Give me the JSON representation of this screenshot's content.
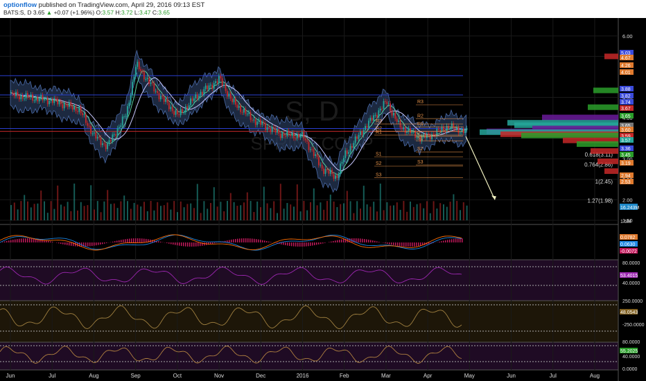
{
  "header": {
    "author": "optionflow",
    "published_text": "published on TradingView.com, April 29, 2016 09:13 EST",
    "symbol": "BATS:S, D",
    "last": "3.65",
    "change_arrow": "▲",
    "change": "+0.07 (+1.96%)",
    "open_label": "O:",
    "open": "3.57",
    "high_label": "H:",
    "high": "3.72",
    "low_label": "L:",
    "low": "3.47",
    "close_label": "C:",
    "close": "3.65"
  },
  "watermark": {
    "line1": "S, D",
    "line2": "SPRINT CORP"
  },
  "colors": {
    "bg": "#000000",
    "up": "#26a69a",
    "down": "#c62828",
    "band_fill": "#2b3f63",
    "macd_pane": "#000000",
    "rsi_pane": "#1f0b24",
    "cci_pane": "#1d1608",
    "stoch_pane": "#1f0b24",
    "arrow": "#f0f0c0",
    "pivot": "#e8944a"
  },
  "chart_data": {
    "type": "line",
    "title": "BATS:S, D",
    "x_labels": [
      "Jun",
      "Jul",
      "Aug",
      "Sep",
      "Oct",
      "Nov",
      "Dec",
      "2016",
      "Feb",
      "Mar",
      "Apr",
      "May",
      "Jun",
      "Jul",
      "Aug"
    ],
    "price_axis_labels": [
      "6.00",
      "5.50",
      "4.50",
      "4.00",
      "3.50",
      "3.00",
      "2.50",
      "2.00",
      "1.50"
    ],
    "price_axis": [
      "6.00",
      "5.50",
      "3.00",
      "2.00"
    ],
    "ylim": [
      1.5,
      6.2
    ],
    "series": [
      {
        "name": "Close",
        "x": [
          "2015-06",
          "2015-07",
          "2015-07-20",
          "2015-08",
          "2015-08-10",
          "2015-08-24",
          "2015-09-01",
          "2015-09-15",
          "2015-10",
          "2015-10-15",
          "2015-11",
          "2015-11-10",
          "2015-11-25",
          "2015-12",
          "2015-12-15",
          "2016-01",
          "2016-01-15",
          "2016-01-25",
          "2016-02",
          "2016-02-15",
          "2016-03",
          "2016-03-10",
          "2016-03-25",
          "2016-04",
          "2016-04-15",
          "2016-04-29"
        ],
        "values": [
          4.56,
          4.42,
          4.2,
          3.55,
          3.3,
          4.1,
          5.3,
          4.65,
          4.05,
          4.55,
          4.95,
          4.4,
          3.95,
          3.85,
          3.6,
          3.55,
          2.75,
          2.55,
          3.1,
          3.75,
          4.4,
          3.8,
          3.52,
          3.55,
          3.78,
          3.65
        ]
      }
    ],
    "right_price_tags": [
      {
        "value": "5.03",
        "color": "#3a4adb"
      },
      {
        "value": "4.67",
        "color": "#e07a2e"
      },
      {
        "value": "4.26",
        "color": "#e07a2e"
      },
      {
        "value": "4.01",
        "color": "#e07a2e"
      },
      {
        "value": "3.88",
        "color": "#3a4adb"
      },
      {
        "value": "3.82",
        "color": "#3a4adb"
      },
      {
        "value": "3.74",
        "color": "#3a4adb"
      },
      {
        "value": "3.67",
        "color": "#c62828"
      },
      {
        "value": "3.65",
        "color": "#2a9d2a"
      },
      {
        "value": "3.65",
        "color": "#777777"
      },
      {
        "value": "3.60",
        "color": "#e07a2e"
      },
      {
        "value": "3.59",
        "color": "#c62828"
      },
      {
        "value": "3.57",
        "color": "#26a69a"
      },
      {
        "value": "3.36",
        "color": "#3a4adb"
      },
      {
        "value": "3.45",
        "color": "#2a9d2a"
      },
      {
        "value": "3.19",
        "color": "#e07a2e"
      },
      {
        "value": "2.94",
        "color": "#e07a2e"
      },
      {
        "value": "2.53",
        "color": "#e07a2e"
      }
    ],
    "volume_tag": "16.243M",
    "volume_axis": "1.5M",
    "pivot_labels": [
      "R3",
      "R2",
      "R3",
      "R1",
      "R2",
      "R1",
      "P",
      "S1",
      "S2",
      "S1",
      "S2",
      "S3",
      "S3"
    ],
    "fib_labels": [
      "0.618(3.11)",
      "0.764(2.86)",
      "1(2.45)",
      "1.27(1.98)"
    ],
    "volume_profile": [
      {
        "level": 5.5,
        "vol": 0.1,
        "color": "#c62828"
      },
      {
        "level": 4.67,
        "vol": 0.18,
        "color": "#2a9d2a"
      },
      {
        "level": 4.26,
        "vol": 0.22,
        "color": "#2a9d2a"
      },
      {
        "level": 4.01,
        "vol": 0.55,
        "color": "#6a1b9a"
      },
      {
        "level": 3.88,
        "vol": 0.8,
        "color": "#26a69a"
      },
      {
        "level": 3.82,
        "vol": 0.75,
        "color": "#26a69a"
      },
      {
        "level": 3.74,
        "vol": 0.62,
        "color": "#6a1b9a"
      },
      {
        "level": 3.67,
        "vol": 0.95,
        "color": "#6a1b9a"
      },
      {
        "level": 3.65,
        "vol": 1.0,
        "color": "#26a69a"
      },
      {
        "level": 3.6,
        "vol": 0.85,
        "color": "#c62828"
      },
      {
        "level": 3.57,
        "vol": 0.7,
        "color": "#2a9d2a"
      },
      {
        "level": 3.45,
        "vol": 0.4,
        "color": "#c62828"
      },
      {
        "level": 3.36,
        "vol": 0.3,
        "color": "#2a9d2a"
      },
      {
        "level": 3.19,
        "vol": 0.2,
        "color": "#c62828"
      },
      {
        "level": 2.94,
        "vol": 0.15,
        "color": "#c62828"
      },
      {
        "level": 2.7,
        "vol": 0.1,
        "color": "#c62828"
      }
    ],
    "indicators": [
      {
        "name": "MACD",
        "tags": [
          "0.0782",
          "0.0630",
          "-0.0072"
        ]
      },
      {
        "name": "RSI",
        "axis": [
          "80.0000",
          "40.0000"
        ],
        "tag": "53.4015"
      },
      {
        "name": "CCI",
        "axis": [
          "250.0000",
          "-250.0000"
        ],
        "tag": "48.0543"
      },
      {
        "name": "Stoch",
        "axis": [
          "80.0000",
          "40.0000",
          "0.0000"
        ],
        "tag": "55.2025"
      }
    ]
  }
}
